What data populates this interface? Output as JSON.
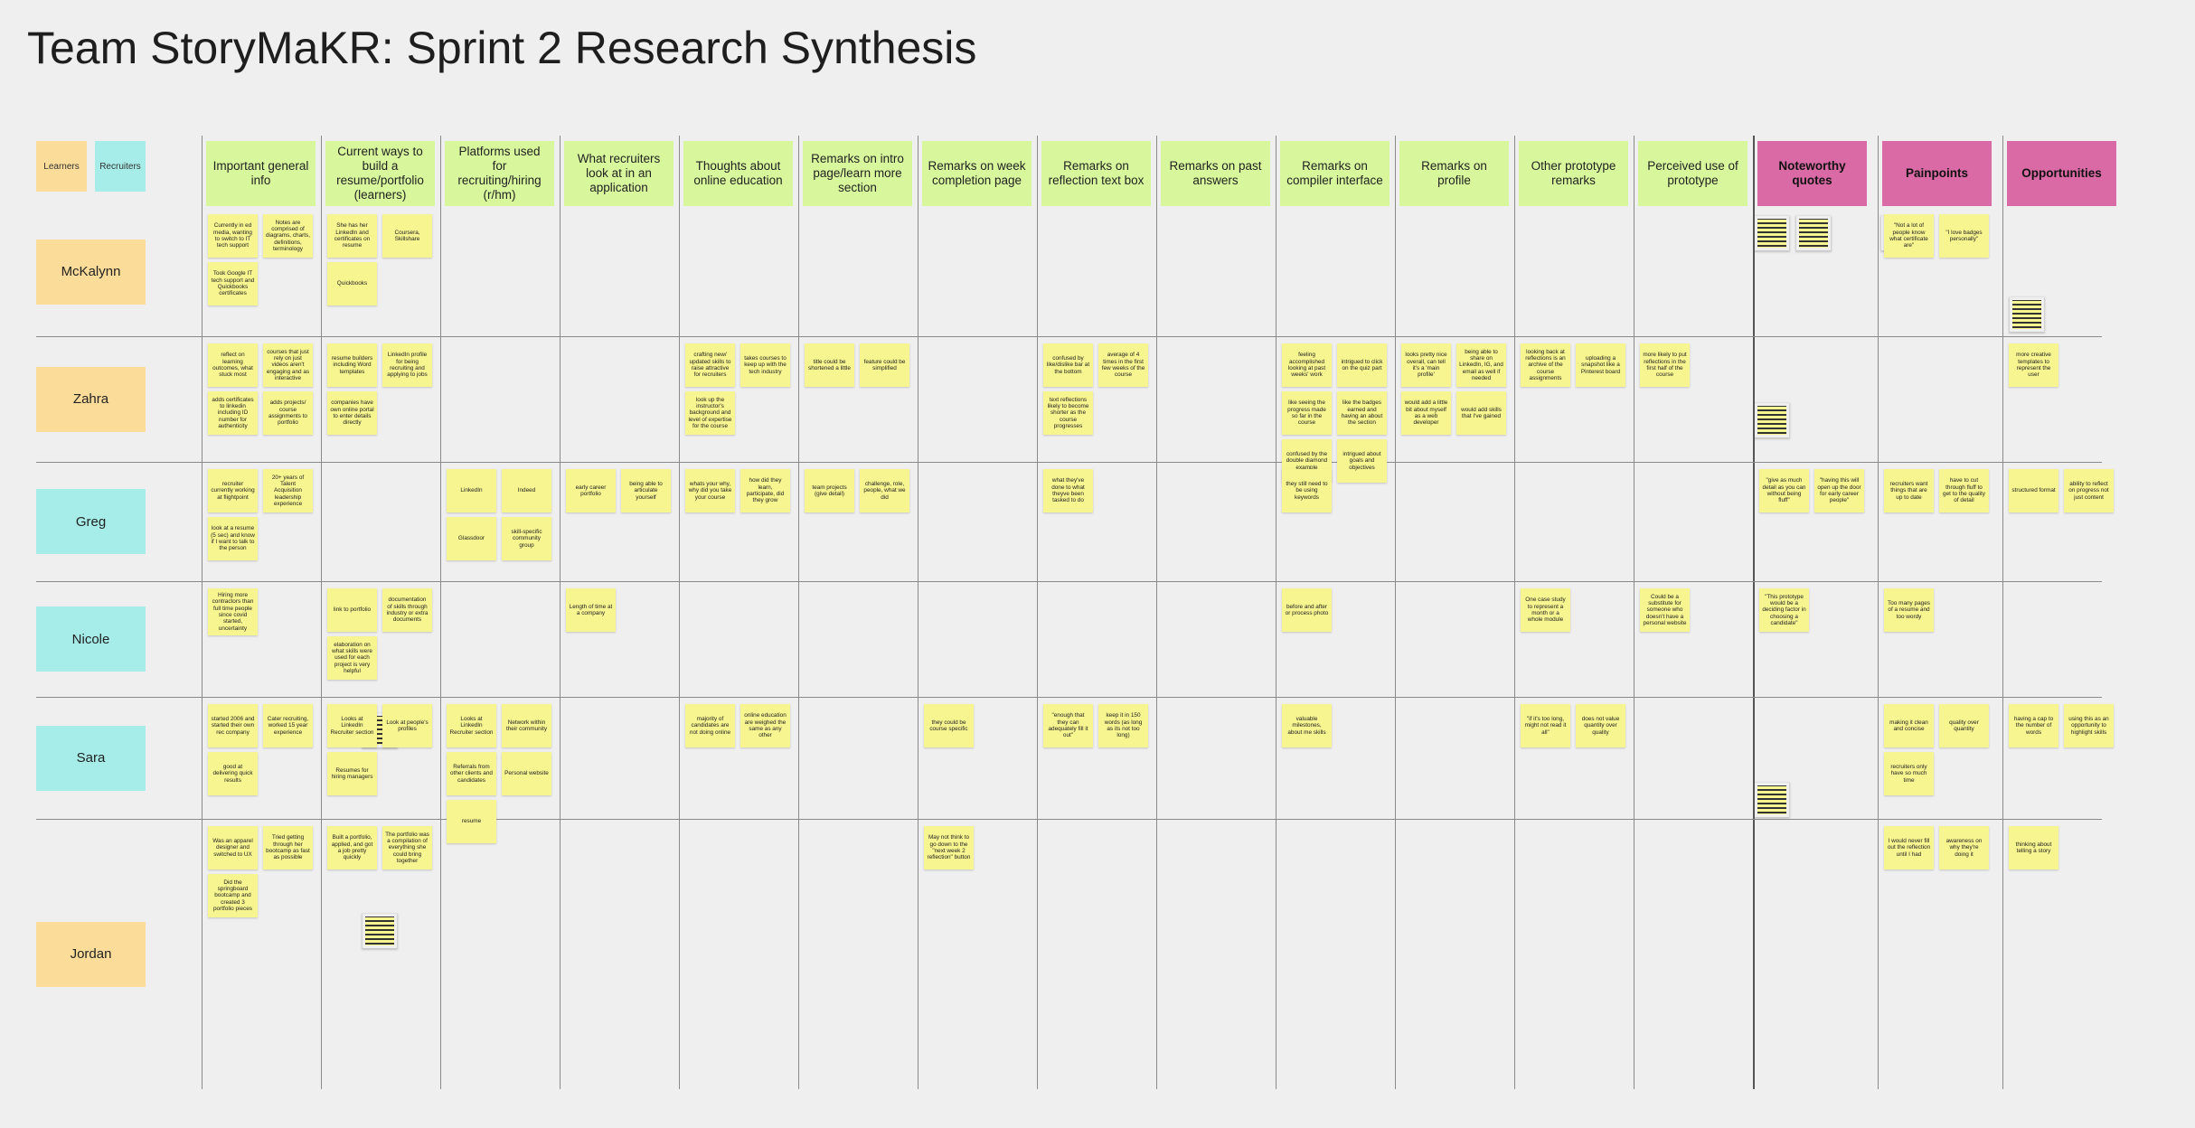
{
  "title": "Team StoryMaKR: Sprint 2 Research Synthesis",
  "legend": [
    {
      "label": "Learners",
      "color": "#fbdc98"
    },
    {
      "label": "Recruiters",
      "color": "#a6ece9"
    }
  ],
  "note_color": "#f7f590",
  "columns": [
    {
      "title": "Important general info",
      "color": "#d8f79c"
    },
    {
      "title": "Current ways to build a resume/portfolio (learners)",
      "color": "#d8f79c"
    },
    {
      "title": "Platforms used for recruiting/hiring (r/hm)",
      "color": "#d8f79c"
    },
    {
      "title": "What recruiters look at in an application",
      "color": "#d8f79c"
    },
    {
      "title": "Thoughts about online education",
      "color": "#d8f79c"
    },
    {
      "title": "Remarks on intro page/learn more section",
      "color": "#d8f79c"
    },
    {
      "title": "Remarks on week completion page",
      "color": "#d8f79c"
    },
    {
      "title": "Remarks on reflection text box",
      "color": "#d8f79c"
    },
    {
      "title": "Remarks on past answers",
      "color": "#d8f79c"
    },
    {
      "title": "Remarks on compiler interface",
      "color": "#d8f79c"
    },
    {
      "title": "Remarks on profile",
      "color": "#d8f79c"
    },
    {
      "title": "Other prototype remarks",
      "color": "#d8f79c"
    },
    {
      "title": "Perceived use of prototype",
      "color": "#d8f79c"
    },
    {
      "title": "Noteworthy quotes",
      "color": "#d96aa6"
    },
    {
      "title": "Painpoints",
      "color": "#d96aa6"
    },
    {
      "title": "Opportunities",
      "color": "#d96aa6"
    }
  ],
  "rows": [
    {
      "name": "McKalynn",
      "color": "#fbdc98",
      "cells": [
        [
          "Currently in ed media, wanting to switch to IT tech support",
          "Notes are comprised of diagrams, charts, definitions, terminology",
          "Took Google IT tech support and Quickbooks certificates"
        ],
        [
          "She has her LinkedIn and certificates on resume",
          "Coursera, Skillshare",
          "Quickbooks"
        ],
        [],
        [],
        [],
        [],
        [],
        [],
        [],
        [],
        [],
        [],
        [],
        [],
        [
          "\"Not a lot of people know what certificate are\"",
          "\"I love badges personally\""
        ],
        []
      ]
    },
    {
      "name": "Zahra",
      "color": "#fbdc98",
      "cells": [
        [
          "reflect on learning outcomes, what stuck most",
          "courses that just rely on just videos aren't engaging and as interactive",
          "adds certificates to linkedin including ID number for authenticity",
          "adds projects/ course assignments to portfolio"
        ],
        [
          "resume builders including Word templates",
          "LinkedIn profile for being recruiting and applying to jobs",
          "companies have own online portal to enter details directly"
        ],
        [],
        [],
        [
          "crafting new/ updated skills to raise attractive for recruiters",
          "takes courses to keep up with the tech industry",
          "look up the instructor's background and level of expertise for the course"
        ],
        [
          "title could be shortened a little",
          "feature could be simplified"
        ],
        [],
        [
          "confused by like/dislike bar at the bottom",
          "average of 4 times in the first few weeks of the course",
          "text reflections likely to become shorter as the course progresses"
        ],
        [],
        [
          "feeling accomplished looking at past weeks' work",
          "intrigued to click on the quiz part",
          "like seeing the progress made so far in the course",
          "like the badges earned and having an about the section",
          "confused by the double diamond example",
          "intrigued about goals and objectives"
        ],
        [
          "looks pretty nice overall, can tell it's a 'main profile'",
          "being able to share on LinkedIn, IG, and email as well if needed",
          "would add a little bit about myself as a web developer",
          "would add skills that I've gained"
        ],
        [
          "looking back at reflections is an archive of the course assignments",
          "uploading a snapshot like a Pinterest board"
        ],
        [
          "more likely to put reflections in the first half of the course"
        ],
        [],
        [],
        [
          "more creative templates to represent the user"
        ]
      ]
    },
    {
      "name": "Greg",
      "color": "#a6ece9",
      "cells": [
        [
          "recruiter currently working at flightpoint",
          "20+ years of Talent Acquisition leadership experience",
          "look at a resume (5 sec) and know if I want to talk to the person"
        ],
        [],
        [
          "LinkedIn",
          "Indeed",
          "Glassdoor",
          "skill-specific community group"
        ],
        [
          "early career portfolio",
          "being able to articulate yourself"
        ],
        [
          "whats your why, why did you take your course",
          "how did they learn, participate, did they grow"
        ],
        [
          "team projects (give detail)",
          "challenge, role, people, what we did"
        ],
        [],
        [
          "what they've done to what theyve been tasked to do"
        ],
        [],
        [
          "they still need to be using keywords"
        ],
        [],
        [],
        [],
        [
          "\"give as much detail as you can without being fluff\"",
          "\"having this will open up the door for early career people\""
        ],
        [
          "recruiters want things that are up to date",
          "have to cut through fluff to get to the quality of detail"
        ],
        [
          "structured format",
          "ability to reflect on progress not just content"
        ]
      ]
    },
    {
      "name": "Nicole",
      "color": "#a6ece9",
      "cells": [
        [
          "Hiring more contractors than full time people since covid started, uncertainty"
        ],
        [
          "link to portfolio",
          "documentation of skills through industry or extra documents",
          "elaboration on what skills were used for each project is very helpful"
        ],
        [],
        [
          "Length of time at a company"
        ],
        [],
        [],
        [],
        [],
        [],
        [
          "before and after or process photo"
        ],
        [],
        [
          "One case study to represent a month or a whole module"
        ],
        [
          "Could be a substitute for someone who doesn't have a personal website"
        ],
        [
          "\"This prototype would be a deciding factor in choosing a candidate\""
        ],
        [
          "Too many pages of a resume and too wordy"
        ],
        []
      ]
    },
    {
      "name": "Sara",
      "color": "#a6ece9",
      "cells": [
        [
          "started 2006 and started their own rec company",
          "Cater recruiting, worked 15 year experience",
          "good at delivering quick results"
        ],
        [
          "Looks at LinkedIn Recruiter section",
          "Look at people's profiles",
          "Resumes for hiring managers"
        ],
        [
          "Looks at LinkedIn Recruiter section",
          "Network within their community",
          "Referrals from other clients and candidates",
          "Personal website",
          "resume"
        ],
        [],
        [
          "majority of candidates are not doing online",
          "online education are weighed the same as any other"
        ],
        [],
        [
          "they could be course specific"
        ],
        [
          "\"enough that they can adequately fill it out\"",
          "keep it in 150 words (as long as its not too long)"
        ],
        [],
        [
          "valuable milestones, about me skills"
        ],
        [],
        [
          "\"if it's too long, might not read it all\"",
          "does not value quantity over quality"
        ],
        [],
        [],
        [
          "making it clean and concise",
          "quality over quantity",
          "recruiters only have so much time"
        ],
        [
          "having a cap to the number of words",
          "using this as an opportunity to highlight skills"
        ]
      ]
    },
    {
      "name": "Jordan",
      "color": "#fbdc98",
      "cells": [
        [
          "Was an apparel designer and switched to UX",
          "Tried getting through her bootcamp as fast as possible",
          "Did the springboard bootcamp and created 3 portfolio pieces"
        ],
        [
          "Built a portfolio, applied, and got a job pretty quickly",
          "The portfolio was a compilation of everything she could bring together"
        ],
        [],
        [],
        [],
        [],
        [
          "May not think to go down to the \"next week 2 reflection\" button"
        ],
        [],
        [],
        [],
        [],
        [],
        [],
        [],
        [
          "I would never fill out the reflection until I had",
          "awareness on why they're doing it"
        ],
        [
          "thinking about telling a story"
        ]
      ]
    }
  ]
}
